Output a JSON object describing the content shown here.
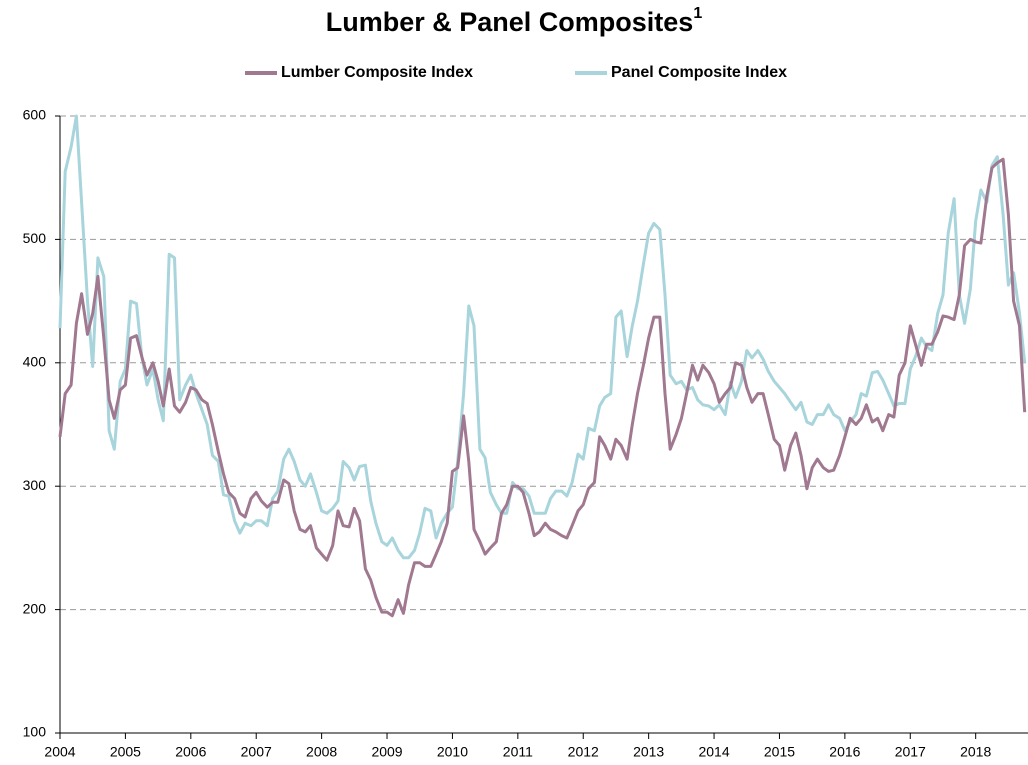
{
  "chart_data": {
    "type": "line",
    "title": "Lumber & Panel Composites",
    "title_note": "1",
    "x": [
      2004,
      2004.08,
      2004.17,
      2004.25,
      2004.33,
      2004.42,
      2004.5,
      2004.58,
      2004.67,
      2004.75,
      2004.83,
      2004.92,
      2005,
      2005.08,
      2005.17,
      2005.25,
      2005.33,
      2005.42,
      2005.5,
      2005.58,
      2005.67,
      2005.75,
      2005.83,
      2005.92,
      2006,
      2006.08,
      2006.17,
      2006.25,
      2006.33,
      2006.42,
      2006.5,
      2006.58,
      2006.67,
      2006.75,
      2006.83,
      2006.92,
      2007,
      2007.08,
      2007.17,
      2007.25,
      2007.33,
      2007.42,
      2007.5,
      2007.58,
      2007.67,
      2007.75,
      2007.83,
      2007.92,
      2008,
      2008.08,
      2008.17,
      2008.25,
      2008.33,
      2008.42,
      2008.5,
      2008.58,
      2008.67,
      2008.75,
      2008.83,
      2008.92,
      2009,
      2009.08,
      2009.17,
      2009.25,
      2009.33,
      2009.42,
      2009.5,
      2009.58,
      2009.67,
      2009.75,
      2009.83,
      2009.92,
      2010,
      2010.08,
      2010.17,
      2010.25,
      2010.33,
      2010.42,
      2010.5,
      2010.58,
      2010.67,
      2010.75,
      2010.83,
      2010.92,
      2011,
      2011.08,
      2011.17,
      2011.25,
      2011.33,
      2011.42,
      2011.5,
      2011.58,
      2011.67,
      2011.75,
      2011.83,
      2011.92,
      2012,
      2012.08,
      2012.17,
      2012.25,
      2012.33,
      2012.42,
      2012.5,
      2012.58,
      2012.67,
      2012.75,
      2012.83,
      2012.92,
      2013,
      2013.08,
      2013.17,
      2013.25,
      2013.33,
      2013.42,
      2013.5,
      2013.58,
      2013.67,
      2013.75,
      2013.83,
      2013.92,
      2014,
      2014.08,
      2014.17,
      2014.25,
      2014.33,
      2014.42,
      2014.5,
      2014.58,
      2014.67,
      2014.75,
      2014.83,
      2014.92,
      2015,
      2015.08,
      2015.17,
      2015.25,
      2015.33,
      2015.42,
      2015.5,
      2015.58,
      2015.67,
      2015.75,
      2015.83,
      2015.92,
      2016,
      2016.08,
      2016.17,
      2016.25,
      2016.33,
      2016.42,
      2016.5,
      2016.58,
      2016.67,
      2016.75,
      2016.83,
      2016.92,
      2017,
      2017.08,
      2017.17,
      2017.25,
      2017.33,
      2017.42,
      2017.5,
      2017.58,
      2017.67,
      2017.75,
      2017.83,
      2017.92,
      2018,
      2018.08,
      2018.17,
      2018.25,
      2018.33,
      2018.42,
      2018.5,
      2018.58,
      2018.67,
      2018.75
    ],
    "series": [
      {
        "name": "Lumber Composite Index",
        "color": "#a07890",
        "values": [
          340,
          375,
          382,
          432,
          456,
          423,
          440,
          470,
          420,
          370,
          355,
          378,
          382,
          420,
          422,
          405,
          390,
          400,
          385,
          365,
          395,
          365,
          360,
          368,
          380,
          378,
          370,
          367,
          350,
          328,
          310,
          295,
          290,
          278,
          275,
          290,
          295,
          288,
          283,
          287,
          287,
          305,
          302,
          280,
          265,
          263,
          268,
          250,
          245,
          240,
          252,
          280,
          268,
          267,
          282,
          272,
          233,
          224,
          210,
          198,
          198,
          195,
          208,
          197,
          220,
          238,
          238,
          235,
          235,
          245,
          255,
          270,
          312,
          315,
          357,
          320,
          265,
          255,
          245,
          250,
          255,
          278,
          285,
          300,
          300,
          295,
          278,
          260,
          263,
          270,
          265,
          263,
          260,
          258,
          268,
          280,
          285,
          298,
          303,
          340,
          333,
          322,
          338,
          333,
          322,
          350,
          375,
          398,
          420,
          437,
          437,
          375,
          330,
          342,
          355,
          375,
          398,
          386,
          398,
          392,
          383,
          368,
          375,
          380,
          400,
          398,
          380,
          368,
          375,
          375,
          358,
          338,
          333,
          313,
          333,
          343,
          325,
          298,
          315,
          322,
          315,
          312,
          313,
          325,
          340,
          355,
          350,
          355,
          366,
          352,
          355,
          345,
          358,
          356,
          390,
          400,
          430,
          415,
          398,
          415,
          415,
          425,
          438,
          437,
          435,
          455,
          495,
          500,
          498,
          497,
          535,
          558,
          562,
          565,
          520,
          450,
          430,
          360
        ]
      },
      {
        "name": "Panel Composite Index",
        "color": "#a8d4dc",
        "values": [
          428,
          555,
          575,
          600,
          530,
          450,
          397,
          485,
          470,
          345,
          330,
          385,
          395,
          450,
          448,
          405,
          382,
          395,
          370,
          353,
          488,
          485,
          370,
          382,
          390,
          375,
          362,
          350,
          325,
          320,
          293,
          292,
          272,
          262,
          270,
          268,
          272,
          272,
          268,
          290,
          296,
          322,
          330,
          320,
          305,
          300,
          310,
          295,
          280,
          278,
          282,
          288,
          320,
          315,
          305,
          316,
          317,
          288,
          270,
          255,
          252,
          258,
          248,
          242,
          242,
          248,
          262,
          282,
          280,
          258,
          270,
          278,
          283,
          320,
          375,
          446,
          430,
          330,
          323,
          295,
          285,
          278,
          278,
          303,
          298,
          298,
          292,
          278,
          278,
          278,
          290,
          296,
          296,
          292,
          303,
          326,
          322,
          347,
          345,
          365,
          372,
          375,
          437,
          442,
          405,
          430,
          450,
          480,
          505,
          513,
          508,
          455,
          390,
          383,
          385,
          378,
          380,
          370,
          366,
          365,
          362,
          366,
          358,
          384,
          372,
          385,
          410,
          404,
          410,
          403,
          393,
          385,
          380,
          375,
          368,
          362,
          368,
          352,
          350,
          358,
          358,
          366,
          358,
          355,
          345,
          352,
          358,
          375,
          373,
          392,
          393,
          386,
          375,
          365,
          367,
          367,
          395,
          405,
          420,
          413,
          410,
          440,
          455,
          505,
          533,
          455,
          432,
          460,
          515,
          540,
          530,
          560,
          567,
          520,
          463,
          473,
          440,
          400
        ]
      }
    ],
    "xlim": [
      2004,
      2018.8
    ],
    "xticks": [
      2004,
      2005,
      2006,
      2007,
      2008,
      2009,
      2010,
      2011,
      2012,
      2013,
      2014,
      2015,
      2016,
      2017,
      2018
    ],
    "ylim": [
      100,
      600
    ],
    "yticks": [
      100,
      200,
      300,
      400,
      500,
      600
    ],
    "grid": true
  }
}
